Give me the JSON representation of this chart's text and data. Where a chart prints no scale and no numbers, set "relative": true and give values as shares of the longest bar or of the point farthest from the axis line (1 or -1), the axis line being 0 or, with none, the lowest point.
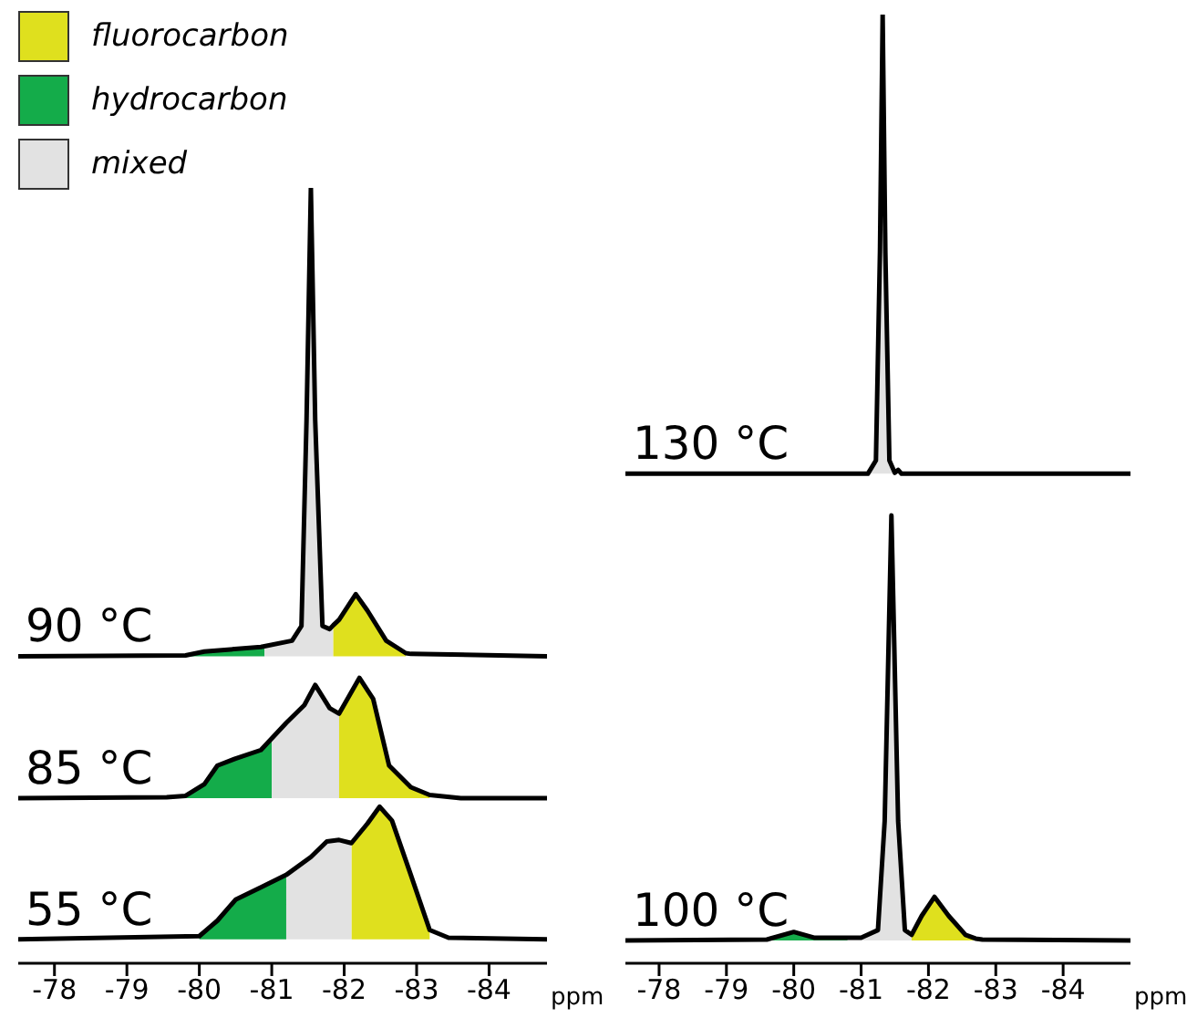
{
  "chart_data": [
    {
      "type": "line",
      "relative": true,
      "xlabel": "ppm",
      "xlim": [
        -77.5,
        -84.8
      ],
      "xticks": [
        -78,
        -79,
        -80,
        -81,
        -82,
        -83,
        -84
      ],
      "legend": "top left",
      "annotations": [
        {
          "text": "55 °C",
          "y": 0.031
        },
        {
          "text": "85 °C",
          "y": 0.213
        },
        {
          "text": "90 °C",
          "y": 0.396
        }
      ],
      "series": [
        {
          "type": "area",
          "name": "fluorocarbon",
          "color": "#dfe01e",
          "x": [
            -82.1,
            -82.1,
            -82.32,
            -82.49,
            -82.66,
            -82.92,
            -83.18,
            -83.18
          ],
          "values": [
            0.031,
            0.155,
            0.18,
            0.202,
            0.184,
            0.114,
            0.043,
            0.031
          ]
        },
        {
          "type": "area",
          "name": "hydrocarbon",
          "color": "#14ac4a",
          "x": [
            -80.0,
            -80.0,
            -80.25,
            -80.5,
            -80.85,
            -81.2,
            -81.2
          ],
          "values": [
            0.031,
            0.035,
            0.055,
            0.082,
            0.098,
            0.114,
            0.031
          ]
        },
        {
          "type": "area",
          "name": "mixed",
          "color": "#e2e2e2",
          "x": [
            -81.2,
            -81.2,
            -81.54,
            -81.76,
            -81.93,
            -82.1,
            -82.1
          ],
          "values": [
            0.031,
            0.114,
            0.137,
            0.157,
            0.159,
            0.155,
            0.031
          ]
        },
        {
          "type": "area",
          "color": "#14ac4a",
          "x": [
            -79.55,
            -79.81,
            -80.07,
            -80.25,
            -80.5,
            -80.85,
            -81.0,
            -81.0
          ],
          "values": [
            0.213,
            0.216,
            0.231,
            0.255,
            0.264,
            0.275,
            0.29,
            0.213
          ]
        },
        {
          "type": "area",
          "color": "#e2e2e2",
          "x": [
            -81.0,
            -81.0,
            -81.2,
            -81.45,
            -81.6,
            -81.8,
            -81.93,
            -81.93
          ],
          "values": [
            0.213,
            0.29,
            0.31,
            0.333,
            0.359,
            0.329,
            0.322,
            0.213
          ]
        },
        {
          "type": "area",
          "color": "#dfe01e",
          "x": [
            -81.93,
            -81.93,
            -82.21,
            -82.4,
            -82.62,
            -82.92,
            -83.18,
            -83.18
          ],
          "values": [
            0.213,
            0.322,
            0.368,
            0.341,
            0.255,
            0.227,
            0.217,
            0.213
          ]
        },
        {
          "type": "area",
          "color": "#14ac4a",
          "x": [
            -79.81,
            -80.07,
            -80.85,
            -80.9,
            -80.9
          ],
          "values": [
            0.396,
            0.402,
            0.408,
            0.409,
            0.396
          ]
        },
        {
          "type": "area",
          "color": "#e2e2e2",
          "x": [
            -80.9,
            -80.9,
            -81.28,
            -81.41,
            -81.48,
            -81.54,
            -81.6,
            -81.7,
            -81.8,
            -81.85,
            -81.85
          ],
          "values": [
            0.396,
            0.409,
            0.416,
            0.435,
            0.7,
            1,
            0.7,
            0.435,
            0.431,
            0.436,
            0.396
          ]
        },
        {
          "type": "area",
          "color": "#dfe01e",
          "x": [
            -81.85,
            -81.85,
            -81.93,
            -82.16,
            -82.32,
            -82.58,
            -82.85,
            -82.85
          ],
          "values": [
            0.396,
            0.436,
            0.443,
            0.476,
            0.455,
            0.416,
            0.4,
            0.396
          ]
        },
        {
          "color": "#000000",
          "x": [
            -77.5,
            -80.0,
            -80.25,
            -80.5,
            -80.85,
            -81.2,
            -81.54,
            -81.76,
            -81.93,
            -82.1,
            -82.32,
            -82.49,
            -82.66,
            -82.92,
            -83.18,
            -83.44,
            -84.8
          ],
          "values": [
            0.031,
            0.035,
            0.055,
            0.082,
            0.098,
            0.114,
            0.137,
            0.157,
            0.159,
            0.155,
            0.18,
            0.202,
            0.184,
            0.114,
            0.043,
            0.033,
            0.031
          ]
        },
        {
          "color": "#000000",
          "x": [
            -77.5,
            -79.55,
            -79.81,
            -80.07,
            -80.25,
            -80.5,
            -80.85,
            -81.0,
            -81.2,
            -81.45,
            -81.6,
            -81.8,
            -81.93,
            -82.21,
            -82.4,
            -82.62,
            -82.92,
            -83.18,
            -83.61,
            -84.8
          ],
          "values": [
            0.213,
            0.214,
            0.216,
            0.231,
            0.255,
            0.264,
            0.275,
            0.29,
            0.31,
            0.333,
            0.359,
            0.329,
            0.322,
            0.368,
            0.341,
            0.255,
            0.227,
            0.217,
            0.213,
            0.213
          ]
        },
        {
          "color": "#000000",
          "x": [
            -77.5,
            -79.81,
            -80.07,
            -80.85,
            -81.28,
            -81.41,
            -81.48,
            -81.54,
            -81.6,
            -81.7,
            -81.8,
            -81.85,
            -81.93,
            -82.16,
            -82.32,
            -82.58,
            -82.85,
            -82.92,
            -84.8
          ],
          "values": [
            0.396,
            0.397,
            0.402,
            0.408,
            0.416,
            0.435,
            0.7,
            1,
            0.7,
            0.435,
            0.431,
            0.436,
            0.443,
            0.476,
            0.455,
            0.416,
            0.4,
            0.399,
            0.396
          ]
        }
      ]
    },
    {
      "type": "line",
      "relative": true,
      "xlabel": "ppm",
      "xlim": [
        -77.5,
        -85
      ],
      "xticks": [
        -78,
        -79,
        -80,
        -81,
        -82,
        -83,
        -84
      ],
      "annotations": [
        {
          "text": "100 °C",
          "y": 0.024
        },
        {
          "text": "130 °C",
          "y": 0.516
        }
      ],
      "series": [
        {
          "type": "area",
          "color": "#14ac4a",
          "x": [
            -79.6,
            -80.0,
            -80.3,
            -80.8,
            -80.8
          ],
          "values": [
            0.024,
            0.033,
            0.027,
            0.027,
            0.024
          ]
        },
        {
          "type": "area",
          "color": "#e2e2e2",
          "x": [
            -80.8,
            -80.8,
            -81.0,
            -81.25,
            -81.35,
            -81.45,
            -81.55,
            -81.65,
            -81.75,
            -81.75
          ],
          "values": [
            0.024,
            0.027,
            0.027,
            0.035,
            0.15,
            0.472,
            0.15,
            0.035,
            0.03,
            0.024
          ]
        },
        {
          "type": "area",
          "color": "#dfe01e",
          "x": [
            -81.75,
            -81.75,
            -81.9,
            -82.09,
            -82.3,
            -82.55,
            -82.7
          ],
          "values": [
            0.024,
            0.03,
            0.05,
            0.07,
            0.05,
            0.03,
            0.024
          ]
        },
        {
          "type": "area",
          "color": "#e2e2e2",
          "x": [
            -81.1,
            -81.22,
            -81.28,
            -81.32,
            -81.36,
            -81.42,
            -81.5,
            -81.5
          ],
          "values": [
            0.516,
            0.53,
            0.75,
            1,
            0.75,
            0.53,
            0.517,
            0.516
          ]
        },
        {
          "color": "#000000",
          "x": [
            -77.5,
            -79.6,
            -80.0,
            -80.3,
            -80.8,
            -81.0,
            -81.25,
            -81.35,
            -81.45,
            -81.55,
            -81.65,
            -81.75,
            -81.9,
            -82.09,
            -82.3,
            -82.55,
            -82.7,
            -82.8,
            -85
          ],
          "values": [
            0.024,
            0.025,
            0.033,
            0.027,
            0.027,
            0.027,
            0.035,
            0.15,
            0.472,
            0.15,
            0.035,
            0.03,
            0.05,
            0.07,
            0.05,
            0.03,
            0.026,
            0.025,
            0.024
          ]
        },
        {
          "color": "#000000",
          "x": [
            -77.5,
            -81.1,
            -81.22,
            -81.28,
            -81.32,
            -81.36,
            -81.42,
            -81.5,
            -81.55,
            -81.6,
            -85
          ],
          "values": [
            0.516,
            0.516,
            0.53,
            0.75,
            1,
            0.75,
            0.53,
            0.517,
            0.52,
            0.516,
            0.516
          ]
        }
      ]
    }
  ]
}
